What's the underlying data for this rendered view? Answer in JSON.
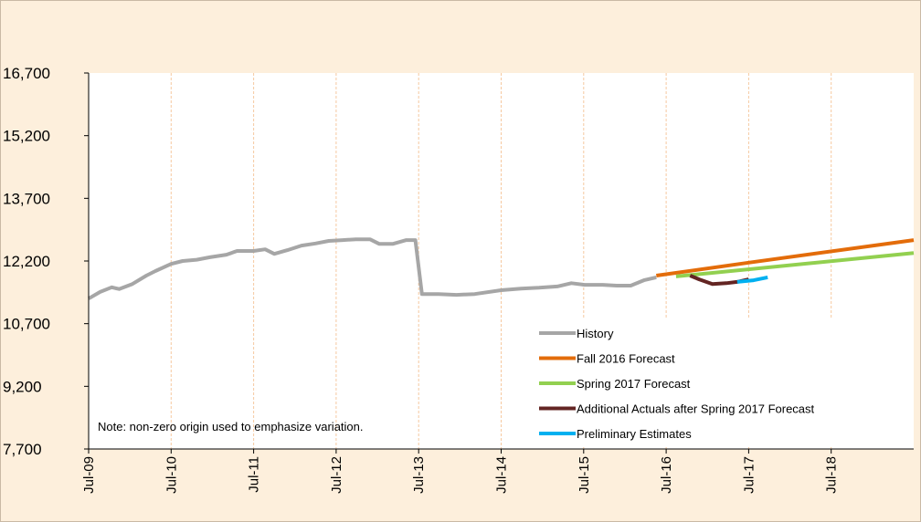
{
  "chart_data": {
    "type": "line",
    "note": "Note: non-zero origin used to emphasize variation.",
    "xlim": [
      2009.5,
      2019.5
    ],
    "xticks": [
      {
        "value": 2009.5,
        "label": "Jul-09"
      },
      {
        "value": 2010.5,
        "label": "Jul-10"
      },
      {
        "value": 2011.5,
        "label": "Jul-11"
      },
      {
        "value": 2012.5,
        "label": "Jul-12"
      },
      {
        "value": 2013.5,
        "label": "Jul-13"
      },
      {
        "value": 2014.5,
        "label": "Jul-14"
      },
      {
        "value": 2015.5,
        "label": "Jul-15"
      },
      {
        "value": 2016.5,
        "label": "Jul-16"
      },
      {
        "value": 2017.5,
        "label": "Jul-17"
      },
      {
        "value": 2018.5,
        "label": "Jul-18"
      }
    ],
    "ylim": [
      7700,
      16700
    ],
    "yticks": [
      {
        "value": 7700,
        "label": "7,700"
      },
      {
        "value": 9200,
        "label": "9,200"
      },
      {
        "value": 10700,
        "label": "10,700"
      },
      {
        "value": 12200,
        "label": "12,200"
      },
      {
        "value": 13700,
        "label": "13,700"
      },
      {
        "value": 15200,
        "label": "15,200"
      },
      {
        "value": 16700,
        "label": "16,700"
      }
    ],
    "grid": "x",
    "legend": "bottom-right",
    "series": [
      {
        "name": "History",
        "color": "#a6a6a6",
        "x": [
          2009.5,
          2009.64,
          2009.78,
          2009.87,
          2010.03,
          2010.2,
          2010.31,
          2010.5,
          2010.64,
          2010.81,
          2010.97,
          2011.17,
          2011.3,
          2011.5,
          2011.64,
          2011.75,
          2011.91,
          2012.08,
          2012.25,
          2012.41,
          2012.58,
          2012.74,
          2012.91,
          2013.02,
          2013.19,
          2013.35,
          2013.46,
          2013.54,
          2013.74,
          2013.96,
          2014.18,
          2014.5,
          2014.74,
          2014.96,
          2015.18,
          2015.35,
          2015.51,
          2015.73,
          2015.9,
          2016.07,
          2016.23,
          2016.38
        ],
        "values": [
          11300,
          11460,
          11570,
          11530,
          11650,
          11850,
          11960,
          12130,
          12200,
          12230,
          12290,
          12350,
          12440,
          12440,
          12480,
          12370,
          12460,
          12570,
          12620,
          12680,
          12700,
          12720,
          12720,
          12610,
          12610,
          12700,
          12700,
          11410,
          11410,
          11390,
          11410,
          11500,
          11540,
          11560,
          11590,
          11670,
          11630,
          11630,
          11610,
          11610,
          11740,
          11810
        ]
      },
      {
        "name": "Fall 2016 Forecast",
        "color": "#e36c0a",
        "x": [
          2016.38,
          2017.5,
          2019.5
        ],
        "values": [
          11850,
          12160,
          12700
        ]
      },
      {
        "name": "Spring 2017 Forecast",
        "color": "#92d050",
        "x": [
          2016.62,
          2019.5
        ],
        "values": [
          11830,
          12390
        ]
      },
      {
        "name": "Additional Actuals after Spring 2017 Forecast",
        "color": "#632523",
        "x": [
          2016.79,
          2016.9,
          2017.06,
          2017.23,
          2017.36,
          2017.5
        ],
        "values": [
          11850,
          11760,
          11650,
          11670,
          11700,
          11760
        ]
      },
      {
        "name": "Preliminary Estimates",
        "color": "#00b0f0",
        "x": [
          2017.36,
          2017.56,
          2017.73
        ],
        "values": [
          11700,
          11740,
          11810
        ]
      }
    ]
  }
}
